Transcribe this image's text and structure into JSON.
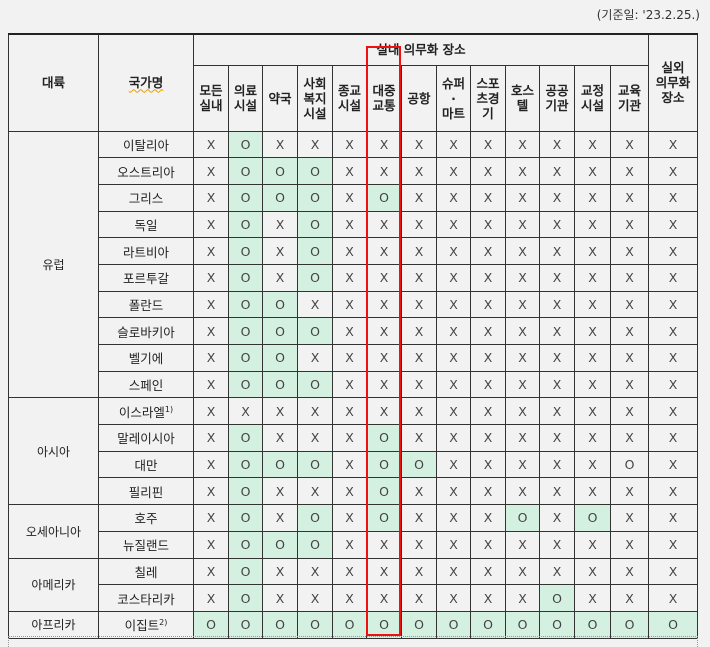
{
  "date_note": "(기준일: '23.2.25.)",
  "header": {
    "continent": "대륙",
    "country": "국가명",
    "indoor_group": "실내 의무화 장소",
    "outdoor": [
      "실외",
      "의무화",
      "장소"
    ],
    "columns": [
      [
        "모든",
        "실내"
      ],
      [
        "의료",
        "시설"
      ],
      [
        "약국"
      ],
      [
        "사회",
        "복지",
        "시설"
      ],
      [
        "종교",
        "시설"
      ],
      [
        "대중",
        "교통"
      ],
      [
        "공항"
      ],
      [
        "슈퍼",
        "·",
        "마트"
      ],
      [
        "스포",
        "츠경",
        "기"
      ],
      [
        "호스",
        "텔"
      ],
      [
        "공공",
        "기관"
      ],
      [
        "교정",
        "시설"
      ],
      [
        "교육",
        "기관"
      ]
    ]
  },
  "shade_color": "#d3f0e1",
  "highlight_color": "#f01010",
  "groups": [
    {
      "continent": "유럽",
      "rows": [
        {
          "country": "이탈리아",
          "values": [
            "X",
            "O",
            "X",
            "X",
            "X",
            "X",
            "X",
            "X",
            "X",
            "X",
            "X",
            "X",
            "X",
            "X"
          ]
        },
        {
          "country": "오스트리아",
          "values": [
            "X",
            "O",
            "O",
            "O",
            "X",
            "X",
            "X",
            "X",
            "X",
            "X",
            "X",
            "X",
            "X",
            "X"
          ]
        },
        {
          "country": "그리스",
          "values": [
            "X",
            "O",
            "O",
            "O",
            "X",
            "O",
            "X",
            "X",
            "X",
            "X",
            "X",
            "X",
            "X",
            "X"
          ]
        },
        {
          "country": "독일",
          "values": [
            "X",
            "O",
            "X",
            "O",
            "X",
            "X",
            "X",
            "X",
            "X",
            "X",
            "X",
            "X",
            "X",
            "X"
          ]
        },
        {
          "country": "라트비아",
          "values": [
            "X",
            "O",
            "X",
            "O",
            "X",
            "X",
            "X",
            "X",
            "X",
            "X",
            "X",
            "X",
            "X",
            "X"
          ]
        },
        {
          "country": "포르투갈",
          "values": [
            "X",
            "O",
            "X",
            "O",
            "X",
            "X",
            "X",
            "X",
            "X",
            "X",
            "X",
            "X",
            "X",
            "X"
          ]
        },
        {
          "country": "폴란드",
          "values": [
            "X",
            "O",
            "O",
            "X",
            "X",
            "X",
            "X",
            "X",
            "X",
            "X",
            "X",
            "X",
            "X",
            "X"
          ]
        },
        {
          "country": "슬로바키아",
          "values": [
            "X",
            "O",
            "O",
            "O",
            "X",
            "X",
            "X",
            "X",
            "X",
            "X",
            "X",
            "X",
            "X",
            "X"
          ]
        },
        {
          "country": "벨기에",
          "values": [
            "X",
            "O",
            "O",
            "X",
            "X",
            "X",
            "X",
            "X",
            "X",
            "X",
            "X",
            "X",
            "X",
            "X"
          ]
        },
        {
          "country": "스페인",
          "values": [
            "X",
            "O",
            "O",
            "O",
            "X",
            "X",
            "X",
            "X",
            "X",
            "X",
            "X",
            "X",
            "X",
            "X"
          ]
        }
      ]
    },
    {
      "continent": "아시아",
      "rows": [
        {
          "country": "이스라엘",
          "sup": "1)",
          "values": [
            "X",
            "X",
            "X",
            "X",
            "X",
            "X",
            "X",
            "X",
            "X",
            "X",
            "X",
            "X",
            "X",
            "X"
          ]
        },
        {
          "country": "말레이시아",
          "values": [
            "X",
            "O",
            "X",
            "X",
            "X",
            "O",
            "X",
            "X",
            "X",
            "X",
            "X",
            "X",
            "X",
            "X"
          ]
        },
        {
          "country": "대만",
          "values": [
            "X",
            "O",
            "O",
            "O",
            "X",
            "O",
            "O",
            "X",
            "X",
            "X",
            "X",
            "X",
            "O",
            "X"
          ],
          "unshaded_cols": [
            12
          ]
        },
        {
          "country": "필리핀",
          "values": [
            "X",
            "O",
            "X",
            "X",
            "X",
            "O",
            "X",
            "X",
            "X",
            "X",
            "X",
            "X",
            "X",
            "X"
          ]
        }
      ]
    },
    {
      "continent": "오세아니아",
      "rows": [
        {
          "country": "호주",
          "values": [
            "X",
            "O",
            "X",
            "O",
            "X",
            "O",
            "X",
            "X",
            "X",
            "O",
            "X",
            "O",
            "X",
            "X"
          ]
        },
        {
          "country": "뉴질랜드",
          "values": [
            "X",
            "O",
            "O",
            "O",
            "X",
            "X",
            "X",
            "X",
            "X",
            "X",
            "X",
            "X",
            "X",
            "X"
          ]
        }
      ]
    },
    {
      "continent": "아메리카",
      "rows": [
        {
          "country": "칠레",
          "values": [
            "X",
            "O",
            "X",
            "X",
            "X",
            "X",
            "X",
            "X",
            "X",
            "X",
            "X",
            "X",
            "X",
            "X"
          ]
        },
        {
          "country": "코스타리카",
          "values": [
            "X",
            "O",
            "X",
            "X",
            "X",
            "X",
            "X",
            "X",
            "X",
            "X",
            "O",
            "X",
            "X",
            "X"
          ]
        }
      ]
    },
    {
      "continent": "아프리카",
      "rows": [
        {
          "country": "이집트",
          "sup": "2)",
          "values": [
            "O",
            "O",
            "O",
            "O",
            "O",
            "O",
            "O",
            "O",
            "O",
            "O",
            "O",
            "O",
            "O",
            "O"
          ]
        }
      ]
    }
  ]
}
